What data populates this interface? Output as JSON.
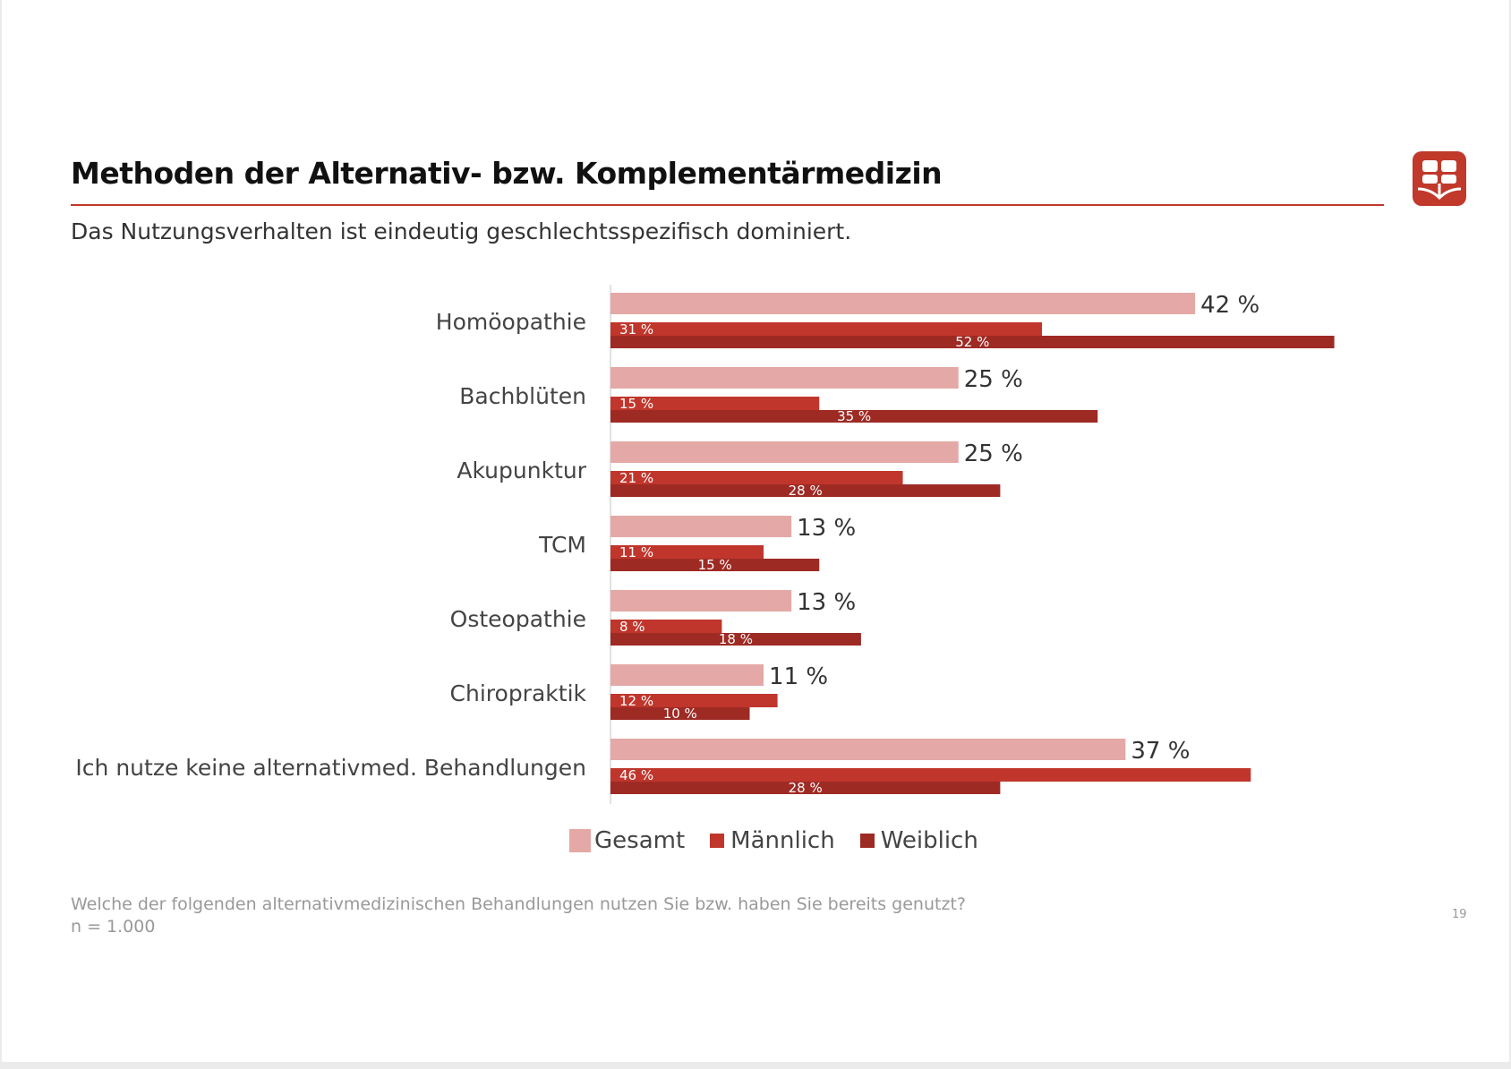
{
  "header": {
    "title": "Methoden der Alternativ- bzw. Komplementärmedizin",
    "subtitle": "Das Nutzungsverhalten ist eindeutig geschlechtsspezifisch dominiert."
  },
  "logo": {
    "icon": "brand-logo-icon",
    "color": "#c0392b"
  },
  "chart_data": {
    "type": "bar",
    "orientation": "horizontal",
    "categories": [
      "Homöopathie",
      "Bachblüten",
      "Akupunktur",
      "TCM",
      "Osteopathie",
      "Chiropraktik",
      "Ich nutze keine alternativmed. Behandlungen"
    ],
    "series": [
      {
        "name": "Gesamt",
        "color": "#e4a9a6",
        "values": [
          42,
          25,
          25,
          13,
          13,
          11,
          37
        ]
      },
      {
        "name": "Männlich",
        "color": "#c0362c",
        "values": [
          31,
          15,
          21,
          11,
          8,
          12,
          46
        ]
      },
      {
        "name": "Weiblich",
        "color": "#9e2a24",
        "values": [
          52,
          35,
          28,
          15,
          18,
          10,
          28
        ]
      }
    ],
    "value_labels": {
      "Gesamt": [
        "42 %",
        "25 %",
        "25 %",
        "13 %",
        "13 %",
        "11 %",
        "37 %"
      ],
      "Männlich": [
        "31 %",
        "15 %",
        "21 %",
        "11 %",
        "8 %",
        "12 %",
        "46 %"
      ],
      "Weiblich": [
        "52 %",
        "35 %",
        "28 %",
        "15 %",
        "18 %",
        "10 %",
        "28 %"
      ]
    },
    "unit": "%",
    "xlim": [
      0,
      53
    ],
    "grid": false,
    "legend_position": "bottom"
  },
  "footnote": {
    "question": "Welche der folgenden alternativmedizinischen Behandlungen nutzen Sie bzw. haben Sie bereits genutzt?",
    "sample": "n = 1.000"
  },
  "page_number": "19"
}
